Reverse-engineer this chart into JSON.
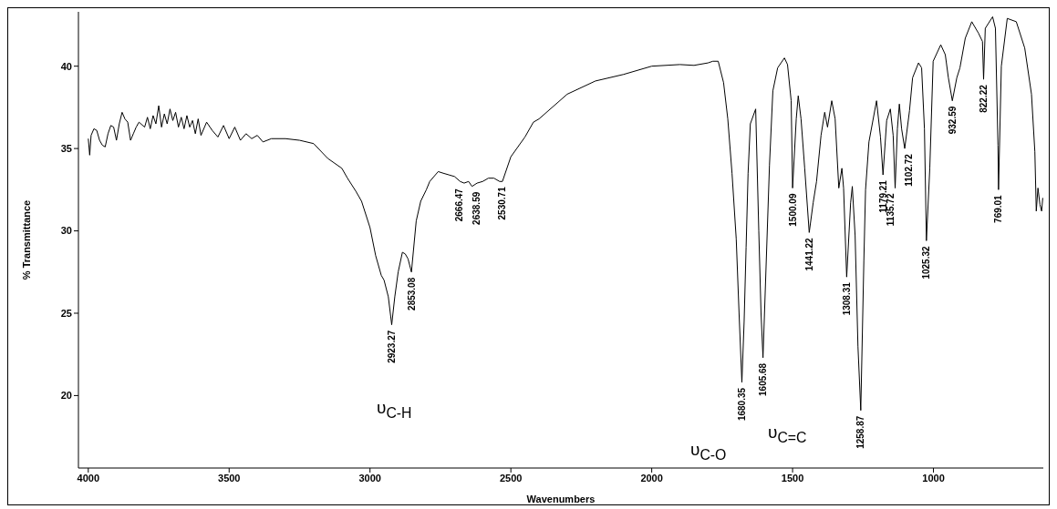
{
  "chart_data": {
    "type": "line",
    "xlabel": "Wavenumbers",
    "ylabel": "% Transmittance",
    "xlim": [
      4035,
      610
    ],
    "xticks": [
      4000,
      3500,
      3000,
      2500,
      2000,
      1500,
      1000
    ],
    "ylim": [
      15.6,
      43.3
    ],
    "yticks": [
      20,
      25,
      30,
      35,
      40
    ],
    "grid": false,
    "marker": "none",
    "line_style": "solid",
    "series": [
      {
        "color": "#000000",
        "x": [
          4000,
          3995,
          3990,
          3980,
          3970,
          3960,
          3950,
          3940,
          3930,
          3920,
          3910,
          3900,
          3890,
          3880,
          3870,
          3860,
          3850,
          3840,
          3830,
          3820,
          3800,
          3790,
          3780,
          3770,
          3760,
          3750,
          3740,
          3730,
          3720,
          3710,
          3700,
          3690,
          3680,
          3670,
          3660,
          3650,
          3640,
          3630,
          3620,
          3610,
          3600,
          3580,
          3560,
          3540,
          3520,
          3500,
          3480,
          3460,
          3440,
          3420,
          3400,
          3380,
          3350,
          3300,
          3250,
          3200,
          3150,
          3100,
          3080,
          3050,
          3030,
          3000,
          2980,
          2960,
          2950,
          2935,
          2923,
          2912,
          2900,
          2885,
          2875,
          2865,
          2853,
          2836,
          2820,
          2800,
          2788,
          2758,
          2740,
          2720,
          2700,
          2680,
          2666,
          2650,
          2638,
          2620,
          2600,
          2580,
          2560,
          2540,
          2530,
          2500,
          2450,
          2420,
          2400,
          2300,
          2200,
          2100,
          2000,
          1900,
          1850,
          1800,
          1783,
          1764,
          1745,
          1730,
          1715,
          1700,
          1690,
          1680,
          1672,
          1665,
          1658,
          1650,
          1631,
          1620,
          1612,
          1605,
          1582,
          1570,
          1553,
          1529,
          1518,
          1505,
          1500,
          1487,
          1480,
          1470,
          1457,
          1441,
          1427,
          1415,
          1399,
          1386,
          1376,
          1361,
          1349,
          1336,
          1325,
          1319,
          1308,
          1294,
          1288,
          1278,
          1268,
          1258,
          1247,
          1241,
          1229,
          1202,
          1188,
          1179,
          1166,
          1153,
          1143,
          1136,
          1128,
          1121,
          1113,
          1102,
          1085,
          1074,
          1053,
          1042,
          1032,
          1025,
          1013,
          1001,
          974,
          958,
          947,
          933,
          917,
          906,
          887,
          864,
          840,
          826,
          822,
          816,
          790,
          780,
          771,
          769,
          759,
          738,
          706,
          676,
          652,
          640,
          635,
          629,
          622,
          616,
          612
        ],
        "values": [
          35.6,
          34.6,
          35.8,
          36.2,
          36.1,
          35.5,
          35.2,
          35.1,
          35.9,
          36.4,
          36.3,
          35.5,
          36.5,
          37.2,
          36.8,
          36.6,
          35.5,
          35.9,
          36.3,
          36.6,
          36.3,
          36.9,
          36.2,
          37.0,
          36.5,
          37.6,
          36.3,
          37.1,
          36.5,
          37.4,
          36.7,
          37.2,
          36.3,
          36.9,
          36.2,
          37.0,
          36.3,
          36.7,
          35.9,
          36.8,
          35.8,
          36.6,
          36.1,
          35.7,
          36.4,
          35.6,
          36.3,
          35.5,
          35.9,
          35.6,
          35.8,
          35.4,
          35.6,
          35.6,
          35.5,
          35.3,
          34.4,
          33.8,
          33.2,
          32.4,
          31.8,
          30.2,
          28.5,
          27.3,
          27.0,
          26.0,
          24.3,
          26.0,
          27.5,
          28.7,
          28.6,
          28.3,
          27.5,
          30.6,
          31.8,
          32.5,
          33.0,
          33.6,
          33.5,
          33.4,
          33.3,
          33.0,
          32.9,
          33.0,
          32.7,
          32.9,
          33.0,
          33.2,
          33.2,
          33.0,
          33.0,
          34.5,
          35.7,
          36.6,
          36.8,
          38.3,
          39.1,
          39.5,
          40.0,
          40.1,
          40.05,
          40.2,
          40.3,
          40.3,
          39.0,
          36.8,
          33.5,
          29.5,
          25.0,
          20.8,
          24.5,
          29.0,
          33.5,
          36.5,
          37.4,
          30.0,
          25.0,
          22.3,
          34.0,
          38.5,
          39.9,
          40.5,
          40.1,
          37.9,
          32.6,
          36.8,
          38.2,
          36.8,
          33.8,
          29.9,
          31.7,
          33.0,
          35.8,
          37.2,
          36.3,
          37.9,
          36.8,
          32.6,
          33.8,
          32.6,
          27.2,
          31.7,
          32.7,
          29.7,
          23.0,
          19.1,
          28.2,
          32.5,
          35.4,
          37.9,
          35.7,
          33.4,
          36.7,
          37.4,
          35.8,
          32.6,
          36.2,
          37.7,
          36.2,
          35.0,
          37.3,
          39.3,
          40.2,
          39.9,
          36.2,
          29.4,
          33.8,
          40.3,
          41.3,
          40.7,
          39.3,
          37.9,
          39.3,
          39.9,
          41.7,
          42.7,
          42.0,
          41.5,
          39.2,
          42.3,
          43.0,
          42.3,
          35.2,
          32.5,
          40.0,
          42.9,
          42.7,
          41.1,
          38.3,
          34.8,
          31.2,
          32.6,
          31.6,
          31.2,
          32.0
        ]
      }
    ],
    "annotations": [
      {
        "text": "2923.27",
        "x": 2923.27,
        "y": 24.3
      },
      {
        "text": "2853.08",
        "x": 2853.08,
        "y": 27.5
      },
      {
        "text": "2666.47",
        "x": 2666.47,
        "y": 32.9
      },
      {
        "text": "2638.59",
        "x": 2638.59,
        "y": 32.7
      },
      {
        "text": "2530.71",
        "x": 2530.71,
        "y": 33.0
      },
      {
        "text": "1680.35",
        "x": 1680.35,
        "y": 20.8
      },
      {
        "text": "1605.68",
        "x": 1605.68,
        "y": 22.3
      },
      {
        "text": "1500.09",
        "x": 1500.09,
        "y": 32.6
      },
      {
        "text": "1441.22",
        "x": 1441.22,
        "y": 29.9
      },
      {
        "text": "1308.31",
        "x": 1308.31,
        "y": 27.2
      },
      {
        "text": "1258.87",
        "x": 1258.87,
        "y": 19.1
      },
      {
        "text": "1179.21",
        "x": 1179.21,
        "y": 33.4
      },
      {
        "text": "1135.72",
        "x": 1135.72,
        "y": 32.6
      },
      {
        "text": "1102.72",
        "x": 1102.72,
        "y": 35.0
      },
      {
        "text": "1025.32",
        "x": 1025.32,
        "y": 29.4
      },
      {
        "text": "932.59",
        "x": 932.59,
        "y": 37.9
      },
      {
        "text": "822.22",
        "x": 822.22,
        "y": 39.2
      },
      {
        "text": "769.01",
        "x": 769.01,
        "y": 32.5
      },
      "υ$_{C-H}$",
      "υ$_{C-O}$",
      "υ$_{C=C}$"
    ]
  }
}
